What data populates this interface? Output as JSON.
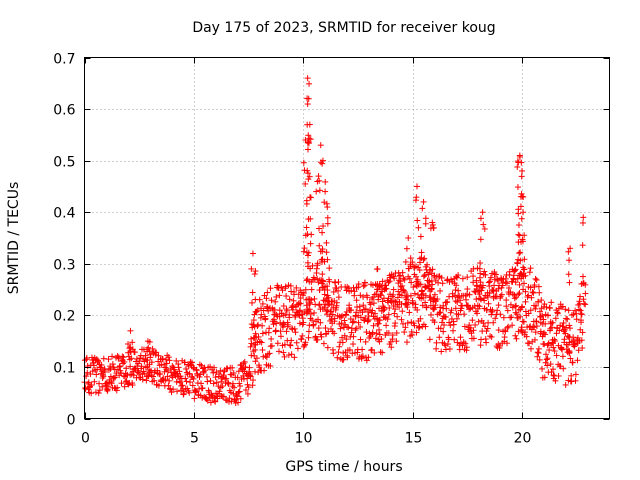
{
  "chart_data": {
    "type": "scatter",
    "title": "Day 175 of 2023, SRMTID for receiver koug",
    "xlabel": "GPS time / hours",
    "ylabel": "SRMTID / TECUs",
    "xlim": [
      0,
      24
    ],
    "ylim": [
      0,
      0.7
    ],
    "xticks": [
      0,
      5,
      10,
      15,
      20
    ],
    "yticks": [
      0,
      0.1,
      0.2,
      0.3,
      0.4,
      0.5,
      0.6,
      0.7
    ],
    "xtick_labels": [
      "0",
      "5",
      "10",
      "15",
      "20"
    ],
    "ytick_labels": [
      "0",
      "0.1",
      "0.2",
      "0.3",
      "0.4",
      "0.5",
      "0.6",
      "0.7"
    ],
    "grid": true,
    "marker": "+",
    "marker_color": "#ff0000",
    "series_name": "SRMTID",
    "envelope": {
      "description": "approximate typical SRMTID level vs GPS hour",
      "x": [
        0,
        1,
        2,
        3,
        4,
        5,
        6,
        7,
        7.5,
        8,
        9,
        10,
        10.5,
        11,
        12,
        13,
        14,
        15,
        15.5,
        16,
        17,
        18,
        19,
        19.8,
        20.5,
        21,
        22,
        22.5,
        22.8
      ],
      "y": [
        0.08,
        0.08,
        0.09,
        0.1,
        0.08,
        0.07,
        0.06,
        0.06,
        0.08,
        0.15,
        0.18,
        0.19,
        0.22,
        0.2,
        0.17,
        0.18,
        0.2,
        0.22,
        0.24,
        0.2,
        0.19,
        0.21,
        0.2,
        0.22,
        0.2,
        0.14,
        0.13,
        0.13,
        0.2
      ]
    },
    "peaks": [
      {
        "x": 10.2,
        "y": 0.66
      },
      {
        "x": 10.25,
        "y": 0.62
      },
      {
        "x": 10.3,
        "y": 0.57
      },
      {
        "x": 10.1,
        "y": 0.54
      },
      {
        "x": 10.8,
        "y": 0.53
      },
      {
        "x": 10.9,
        "y": 0.5
      },
      {
        "x": 10.7,
        "y": 0.47
      },
      {
        "x": 11.0,
        "y": 0.44
      },
      {
        "x": 11.1,
        "y": 0.41
      },
      {
        "x": 15.2,
        "y": 0.45
      },
      {
        "x": 15.5,
        "y": 0.42
      },
      {
        "x": 15.9,
        "y": 0.38
      },
      {
        "x": 14.8,
        "y": 0.35
      },
      {
        "x": 18.2,
        "y": 0.4
      },
      {
        "x": 19.9,
        "y": 0.51
      },
      {
        "x": 20.0,
        "y": 0.48
      },
      {
        "x": 19.95,
        "y": 0.43
      },
      {
        "x": 20.05,
        "y": 0.4
      },
      {
        "x": 22.8,
        "y": 0.39
      },
      {
        "x": 22.2,
        "y": 0.33
      },
      {
        "x": 7.7,
        "y": 0.32
      },
      {
        "x": 13.4,
        "y": 0.29
      },
      {
        "x": 2.1,
        "y": 0.17
      },
      {
        "x": 2.9,
        "y": 0.15
      }
    ]
  }
}
